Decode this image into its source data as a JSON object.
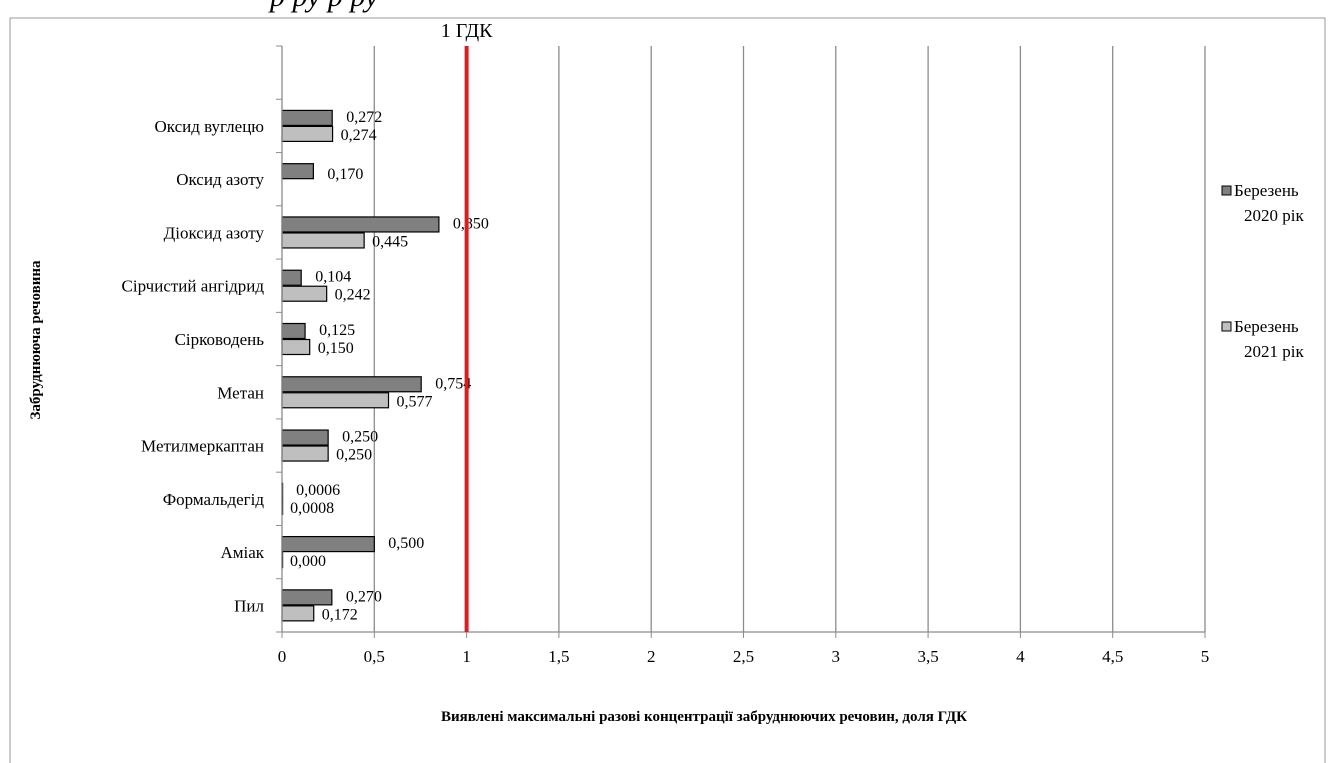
{
  "header_partial": "р                   ру                                       р              ру",
  "chart_data": {
    "type": "bar",
    "orientation": "horizontal",
    "categories": [
      "Пил",
      "Аміак",
      "Формальдегід",
      "Метилмеркаптан",
      "Метан",
      "Сірководень",
      "Сірчистий ангідрид",
      "Діоксид азоту",
      "Оксид азоту",
      "Оксид вуглецю"
    ],
    "series": [
      {
        "name": "Березень 2020 рік",
        "legend_lines": [
          "Березень",
          "2020 рік"
        ],
        "color": "#808080",
        "values": [
          0.27,
          0.5,
          0.0006,
          0.25,
          0.754,
          0.125,
          0.104,
          0.85,
          0.17,
          0.272
        ],
        "labels": [
          "0,270",
          "0,500",
          "0,0006",
          "0,250",
          "0,754",
          "0,125",
          "0,104",
          "0,850",
          "0,170",
          "0,272"
        ]
      },
      {
        "name": "Березень 2021 рік",
        "legend_lines": [
          "Березень",
          "2021 рік"
        ],
        "color": "#bfbfbf",
        "values": [
          0.172,
          0.0,
          0.0008,
          0.25,
          0.577,
          0.15,
          0.242,
          0.445,
          null,
          0.274
        ],
        "labels": [
          "0,172",
          "0,000",
          "0,0008",
          "0,250",
          "0,577",
          "0,150",
          "0,242",
          "0,445",
          null,
          "0,274"
        ]
      }
    ],
    "xlim": [
      0,
      5
    ],
    "x_ticks": [
      0,
      0.5,
      1,
      1.5,
      2,
      2.5,
      3,
      3.5,
      4,
      4.5,
      5
    ],
    "x_tick_labels": [
      "0",
      "0,5",
      "1",
      "1,5",
      "2",
      "2,5",
      "3",
      "3,5",
      "4",
      "4,5",
      "5"
    ],
    "xlabel": "Виявлені максимальні  разові концентрації забруднюючих речовин, доля ГДК",
    "ylabel": "Забруднююча речовина",
    "reference_line": {
      "value": 1,
      "label": "1 ГДК",
      "color": "#e31a1c"
    },
    "grid": "vertical",
    "legend_position": "right"
  }
}
